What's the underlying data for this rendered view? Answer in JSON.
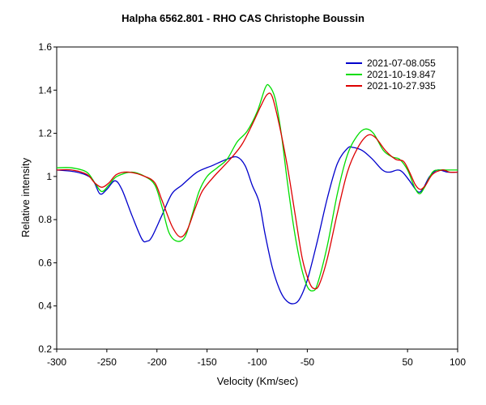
{
  "chart_data": {
    "type": "line",
    "title": "Halpha 6562.801 - RHO CAS   Christophe Boussin",
    "xlabel": "Velocity (Km/sec)",
    "ylabel": "Relative intensity",
    "xlim": [
      -300,
      100
    ],
    "ylim": [
      0.2,
      1.6
    ],
    "x_ticks": [
      -300,
      -250,
      -200,
      -150,
      -100,
      -50,
      50,
      100
    ],
    "x_tick_labels": [
      "-300",
      "-250",
      "-200",
      "-150",
      "-100",
      "-50",
      "50",
      "100"
    ],
    "y_ticks": [
      0.2,
      0.4,
      0.6,
      0.8,
      1.0,
      1.2,
      1.4,
      1.6
    ],
    "y_tick_labels": [
      "0.2",
      "0.4",
      "0.6",
      "0.8",
      "1",
      "1.2",
      "1.4",
      "1.6"
    ],
    "grid": false,
    "legend_position": "top-right",
    "series": [
      {
        "name": "2021-07-08.055",
        "color": "#0000cc",
        "points": [
          [
            -300,
            1.03
          ],
          [
            -280,
            1.02
          ],
          [
            -265,
            0.99
          ],
          [
            -257,
            0.92
          ],
          [
            -250,
            0.94
          ],
          [
            -242,
            0.98
          ],
          [
            -235,
            0.94
          ],
          [
            -225,
            0.82
          ],
          [
            -215,
            0.71
          ],
          [
            -210,
            0.7
          ],
          [
            -205,
            0.72
          ],
          [
            -195,
            0.82
          ],
          [
            -185,
            0.92
          ],
          [
            -175,
            0.96
          ],
          [
            -160,
            1.02
          ],
          [
            -145,
            1.05
          ],
          [
            -130,
            1.08
          ],
          [
            -120,
            1.09
          ],
          [
            -112,
            1.05
          ],
          [
            -105,
            0.96
          ],
          [
            -98,
            0.88
          ],
          [
            -92,
            0.73
          ],
          [
            -85,
            0.58
          ],
          [
            -78,
            0.48
          ],
          [
            -72,
            0.43
          ],
          [
            -65,
            0.41
          ],
          [
            -58,
            0.43
          ],
          [
            -50,
            0.52
          ],
          [
            -40,
            0.7
          ],
          [
            -30,
            0.9
          ],
          [
            -20,
            1.06
          ],
          [
            -10,
            1.13
          ],
          [
            -5,
            1.135
          ],
          [
            5,
            1.12
          ],
          [
            15,
            1.08
          ],
          [
            25,
            1.03
          ],
          [
            32,
            1.02
          ],
          [
            40,
            1.03
          ],
          [
            45,
            1.02
          ],
          [
            52,
            0.98
          ],
          [
            60,
            0.93
          ],
          [
            65,
            0.94
          ],
          [
            72,
            1.0
          ],
          [
            80,
            1.03
          ],
          [
            90,
            1.02
          ],
          [
            100,
            1.02
          ]
        ]
      },
      {
        "name": "2021-10-19.847",
        "color": "#00dd00",
        "points": [
          [
            -300,
            1.04
          ],
          [
            -285,
            1.04
          ],
          [
            -270,
            1.02
          ],
          [
            -262,
            0.97
          ],
          [
            -255,
            0.93
          ],
          [
            -248,
            0.96
          ],
          [
            -240,
            1.0
          ],
          [
            -225,
            1.02
          ],
          [
            -212,
            1.0
          ],
          [
            -202,
            0.96
          ],
          [
            -195,
            0.86
          ],
          [
            -188,
            0.74
          ],
          [
            -180,
            0.7
          ],
          [
            -172,
            0.72
          ],
          [
            -165,
            0.82
          ],
          [
            -158,
            0.93
          ],
          [
            -150,
            1.0
          ],
          [
            -140,
            1.04
          ],
          [
            -130,
            1.08
          ],
          [
            -120,
            1.16
          ],
          [
            -110,
            1.21
          ],
          [
            -100,
            1.3
          ],
          [
            -92,
            1.41
          ],
          [
            -88,
            1.42
          ],
          [
            -82,
            1.36
          ],
          [
            -76,
            1.2
          ],
          [
            -70,
            0.98
          ],
          [
            -63,
            0.75
          ],
          [
            -56,
            0.58
          ],
          [
            -50,
            0.49
          ],
          [
            -45,
            0.47
          ],
          [
            -40,
            0.5
          ],
          [
            -30,
            0.68
          ],
          [
            -20,
            0.92
          ],
          [
            -10,
            1.1
          ],
          [
            0,
            1.19
          ],
          [
            8,
            1.22
          ],
          [
            16,
            1.2
          ],
          [
            26,
            1.12
          ],
          [
            35,
            1.09
          ],
          [
            42,
            1.08
          ],
          [
            50,
            1.03
          ],
          [
            57,
            0.95
          ],
          [
            62,
            0.92
          ],
          [
            67,
            0.95
          ],
          [
            75,
            1.02
          ],
          [
            82,
            1.03
          ],
          [
            90,
            1.03
          ],
          [
            100,
            1.03
          ]
        ]
      },
      {
        "name": "2021-10-27.935",
        "color": "#dd0000",
        "points": [
          [
            -300,
            1.03
          ],
          [
            -285,
            1.03
          ],
          [
            -270,
            1.01
          ],
          [
            -262,
            0.97
          ],
          [
            -255,
            0.95
          ],
          [
            -248,
            0.97
          ],
          [
            -240,
            1.01
          ],
          [
            -228,
            1.02
          ],
          [
            -212,
            1.0
          ],
          [
            -202,
            0.97
          ],
          [
            -195,
            0.89
          ],
          [
            -185,
            0.77
          ],
          [
            -177,
            0.72
          ],
          [
            -170,
            0.75
          ],
          [
            -162,
            0.85
          ],
          [
            -155,
            0.93
          ],
          [
            -145,
            0.99
          ],
          [
            -135,
            1.04
          ],
          [
            -125,
            1.09
          ],
          [
            -115,
            1.15
          ],
          [
            -105,
            1.24
          ],
          [
            -96,
            1.33
          ],
          [
            -90,
            1.38
          ],
          [
            -85,
            1.37
          ],
          [
            -78,
            1.24
          ],
          [
            -70,
            1.05
          ],
          [
            -62,
            0.82
          ],
          [
            -55,
            0.62
          ],
          [
            -48,
            0.51
          ],
          [
            -43,
            0.48
          ],
          [
            -38,
            0.5
          ],
          [
            -30,
            0.62
          ],
          [
            -20,
            0.83
          ],
          [
            -10,
            1.02
          ],
          [
            0,
            1.13
          ],
          [
            10,
            1.19
          ],
          [
            18,
            1.18
          ],
          [
            28,
            1.12
          ],
          [
            38,
            1.08
          ],
          [
            46,
            1.07
          ],
          [
            52,
            1.02
          ],
          [
            58,
            0.96
          ],
          [
            63,
            0.94
          ],
          [
            68,
            0.96
          ],
          [
            75,
            1.01
          ],
          [
            85,
            1.03
          ],
          [
            92,
            1.02
          ],
          [
            100,
            1.02
          ]
        ]
      }
    ]
  }
}
